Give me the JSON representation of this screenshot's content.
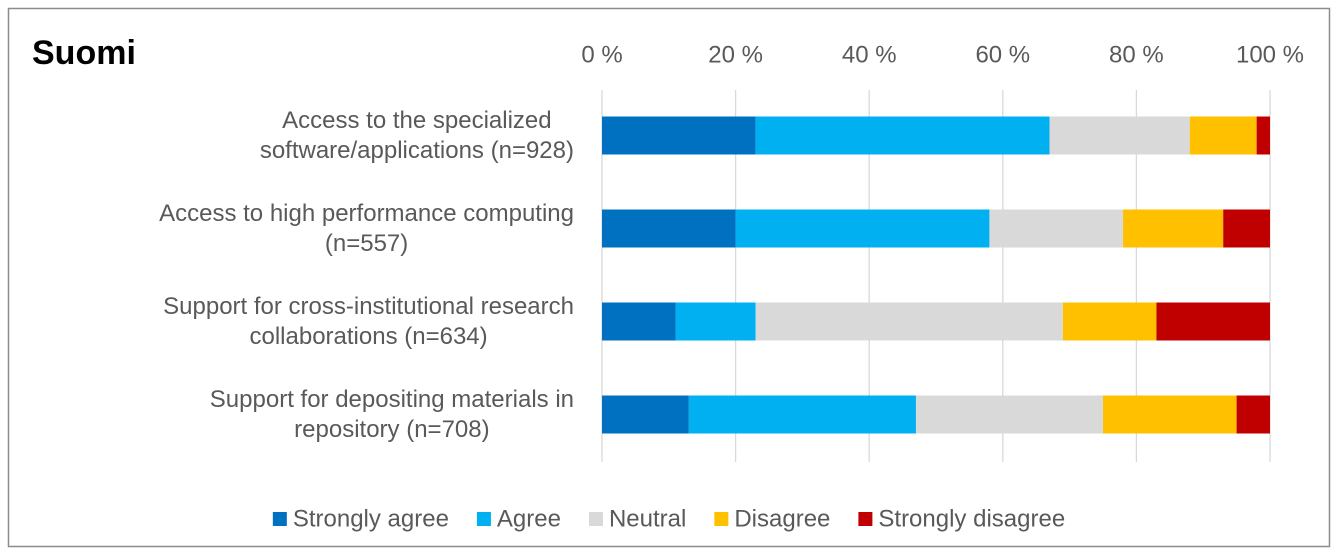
{
  "chart_data": {
    "type": "stacked-bar-horizontal",
    "title": "Suomi",
    "categories": [
      "Access to the specialized\nsoftware/applications (n=928)",
      "Access to high performance computing\n(n=557)",
      "Support for cross-institutional research\ncollaborations (n=634)",
      "Support for depositing materials in\nrepository (n=708)"
    ],
    "series": [
      {
        "name": "Strongly agree",
        "color": "#0070c0",
        "values": [
          23,
          20,
          11,
          13
        ]
      },
      {
        "name": "Agree",
        "color": "#00b0f0",
        "values": [
          44,
          38,
          12,
          34
        ]
      },
      {
        "name": "Neutral",
        "color": "#d9d9d9",
        "values": [
          21,
          20,
          46,
          28
        ]
      },
      {
        "name": "Disagree",
        "color": "#ffc000",
        "values": [
          10,
          15,
          14,
          20
        ]
      },
      {
        "name": "Strongly disagree",
        "color": "#c00000",
        "values": [
          2,
          7,
          17,
          5
        ]
      }
    ],
    "xlim": [
      0,
      100
    ],
    "xticks": [
      {
        "value": 0,
        "label": "0 %"
      },
      {
        "value": 20,
        "label": "20 %"
      },
      {
        "value": 40,
        "label": "40 %"
      },
      {
        "value": 60,
        "label": "60 %"
      },
      {
        "value": 80,
        "label": "80 %"
      },
      {
        "value": 100,
        "label": "100 %"
      }
    ],
    "grid": true,
    "legend": "bottom"
  }
}
